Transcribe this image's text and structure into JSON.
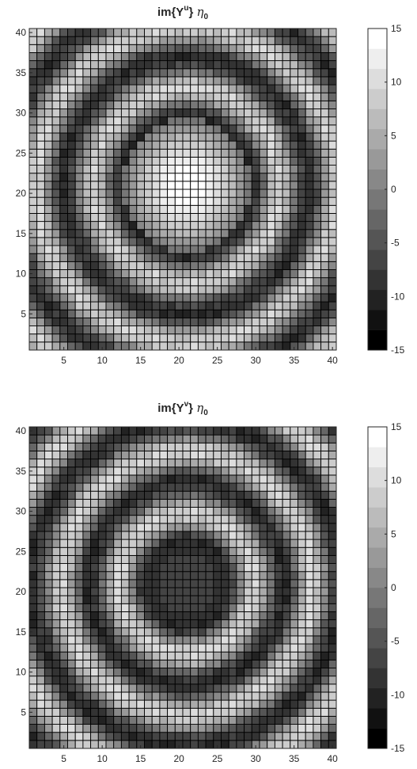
{
  "chart_data": [
    {
      "type": "heatmap",
      "title": {
        "prefix": "im{Y",
        "superscript": "u",
        "suffix": "}",
        "symbol": "η",
        "subscript": "0"
      },
      "x": {
        "ticks": [
          5,
          10,
          15,
          20,
          25,
          30,
          35,
          40
        ],
        "lim": [
          0.5,
          40.5
        ]
      },
      "y": {
        "ticks": [
          5,
          10,
          15,
          20,
          25,
          30,
          35,
          40
        ],
        "lim": [
          0.5,
          40.5
        ]
      },
      "grid_size": [
        40,
        40
      ],
      "center": [
        21,
        21
      ],
      "pattern": "concentric rings: bright peak at center, dark ring radius about 8.5 cells, alternating bright/dark rings outward",
      "colorbar": {
        "ticks": [
          -15,
          -10,
          -5,
          0,
          5,
          10,
          15
        ],
        "lim": [
          -15,
          15
        ],
        "levels": 16,
        "colormap": "gray"
      },
      "model": {
        "period": 7.5,
        "inner_radius": 8.4,
        "center_value": 15,
        "amplitude": 9.5
      }
    },
    {
      "type": "heatmap",
      "title": {
        "prefix": "im{Y",
        "superscript": "v",
        "suffix": "}",
        "symbol": "η",
        "subscript": "0"
      },
      "x": {
        "ticks": [
          5,
          10,
          15,
          20,
          25,
          30,
          35,
          40
        ],
        "lim": [
          0.5,
          40.5
        ]
      },
      "y": {
        "ticks": [
          5,
          10,
          15,
          20,
          25,
          30,
          35,
          40
        ],
        "lim": [
          0.5,
          40.5
        ]
      },
      "grid_size": [
        40,
        40
      ],
      "center": [
        21,
        21
      ],
      "pattern": "concentric rings: dark disc at center bounded by bright ring radius about 5 cells, alternating dark/bright rings outward",
      "colorbar": {
        "ticks": [
          -15,
          -10,
          -5,
          0,
          5,
          10,
          15
        ],
        "lim": [
          -15,
          15
        ],
        "levels": 16,
        "colormap": "gray"
      },
      "model": {
        "period": 7.5,
        "inner_radius": 5.1,
        "center_value": -6,
        "amplitude": 10
      }
    }
  ]
}
